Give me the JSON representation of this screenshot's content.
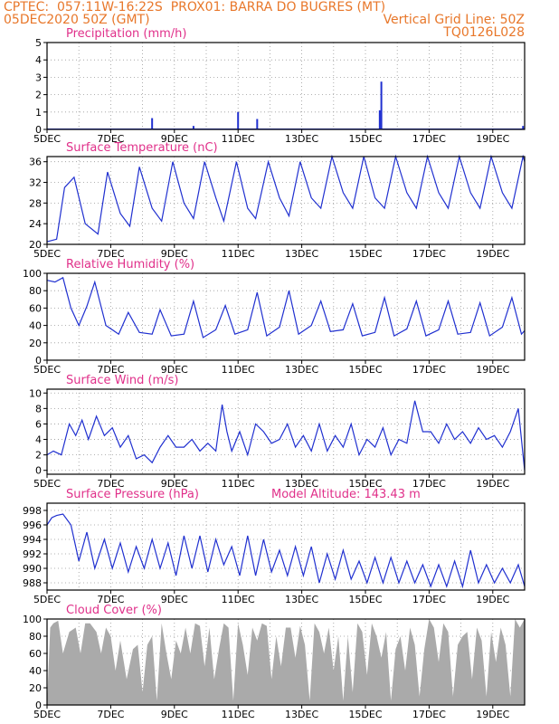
{
  "header": {
    "line1": "CPTEC:  057:11W-16:22S  PROX01: BARRA DO BUGRES (MT)",
    "line2_left": "05DEC2020 50Z (GMT)",
    "line2_right": "Vertical Grid Line: 50Z",
    "line3_right": "TQ0126L028"
  },
  "colors": {
    "header": "#e8772a",
    "title": "#e0308a",
    "line": "#2030d0",
    "cloud": "#aaaaaa"
  },
  "chart_data": [
    {
      "type": "bar",
      "title": "Precipitation (mm/h)",
      "x_start": 0,
      "x_end": 15,
      "ylim": [
        0,
        5
      ],
      "yticks": [
        0,
        1,
        2,
        3,
        4,
        5
      ],
      "xticklabels": [
        "5DEC",
        "7DEC",
        "9DEC",
        "11DEC",
        "13DEC",
        "15DEC",
        "17DEC",
        "19DEC"
      ],
      "x": [
        3.3,
        4.6,
        6.0,
        6.6,
        10.45,
        10.5,
        14.95
      ],
      "values": [
        0.65,
        0.2,
        1.0,
        0.6,
        1.1,
        2.75,
        0.2
      ]
    },
    {
      "type": "line",
      "title": "Surface Temperature (nC)",
      "x_start": 0,
      "x_end": 15,
      "ylim": [
        20,
        37
      ],
      "yticks": [
        20,
        24,
        28,
        32,
        36
      ],
      "xticklabels": [
        "5DEC",
        "7DEC",
        "9DEC",
        "11DEC",
        "13DEC",
        "15DEC",
        "17DEC",
        "19DEC"
      ],
      "x": [
        0,
        0.3,
        0.55,
        0.85,
        1.2,
        1.6,
        1.9,
        2.3,
        2.6,
        2.9,
        3.3,
        3.6,
        3.95,
        4.3,
        4.6,
        4.95,
        5.3,
        5.55,
        5.95,
        6.3,
        6.55,
        6.95,
        7.3,
        7.6,
        7.95,
        8.3,
        8.6,
        8.95,
        9.3,
        9.6,
        9.95,
        10.3,
        10.6,
        10.95,
        11.3,
        11.6,
        11.95,
        12.3,
        12.6,
        12.95,
        13.3,
        13.6,
        13.95,
        14.3,
        14.6,
        14.95,
        15
      ],
      "values": [
        20.5,
        21,
        31,
        33,
        24,
        22,
        34,
        26,
        23.5,
        35,
        27,
        24.5,
        36,
        28,
        25,
        36,
        29,
        24.5,
        36,
        27,
        25,
        36,
        29,
        25.5,
        36,
        29,
        27,
        37,
        30,
        27,
        37,
        29,
        27,
        37,
        30,
        27,
        37,
        30,
        27,
        37,
        30,
        27,
        37,
        30,
        27,
        37,
        36
      ]
    },
    {
      "type": "line",
      "title": "Relative Humidity (%)",
      "x_start": 0,
      "x_end": 15,
      "ylim": [
        0,
        100
      ],
      "yticks": [
        0,
        20,
        40,
        60,
        80,
        100
      ],
      "xticklabels": [
        "5DEC",
        "7DEC",
        "9DEC",
        "11DEC",
        "13DEC",
        "15DEC",
        "17DEC",
        "19DEC"
      ],
      "x": [
        0,
        0.25,
        0.5,
        0.75,
        1.0,
        1.25,
        1.5,
        1.85,
        2.25,
        2.55,
        2.9,
        3.3,
        3.55,
        3.9,
        4.3,
        4.6,
        4.9,
        5.3,
        5.6,
        5.9,
        6.3,
        6.6,
        6.9,
        7.3,
        7.6,
        7.9,
        8.3,
        8.6,
        8.9,
        9.3,
        9.6,
        9.9,
        10.3,
        10.6,
        10.9,
        11.3,
        11.6,
        11.9,
        12.3,
        12.6,
        12.9,
        13.3,
        13.6,
        13.9,
        14.3,
        14.6,
        14.9,
        15
      ],
      "values": [
        92,
        90,
        95,
        60,
        40,
        62,
        90,
        40,
        30,
        55,
        32,
        30,
        58,
        28,
        30,
        68,
        26,
        35,
        63,
        30,
        35,
        78,
        28,
        38,
        80,
        30,
        40,
        68,
        33,
        35,
        65,
        28,
        32,
        72,
        28,
        36,
        68,
        28,
        35,
        68,
        30,
        32,
        66,
        28,
        38,
        72,
        30,
        34
      ]
    },
    {
      "type": "line",
      "title": "Surface Wind (m/s)",
      "x_start": 0,
      "x_end": 15,
      "ylim": [
        -0.5,
        10.5
      ],
      "yticks": [
        0,
        2,
        4,
        6,
        8,
        10
      ],
      "xticklabels": [
        "5DEC",
        "7DEC",
        "9DEC",
        "11DEC",
        "13DEC",
        "15DEC",
        "17DEC",
        "19DEC"
      ],
      "x": [
        0,
        0.2,
        0.45,
        0.7,
        0.9,
        1.1,
        1.3,
        1.55,
        1.8,
        2.05,
        2.3,
        2.55,
        2.8,
        3.05,
        3.3,
        3.55,
        3.8,
        4.05,
        4.3,
        4.55,
        4.8,
        5.05,
        5.3,
        5.5,
        5.65,
        5.8,
        6.05,
        6.3,
        6.55,
        6.8,
        7.05,
        7.3,
        7.55,
        7.8,
        8.05,
        8.3,
        8.55,
        8.8,
        9.05,
        9.3,
        9.55,
        9.8,
        10.05,
        10.3,
        10.55,
        10.8,
        11.05,
        11.3,
        11.55,
        11.8,
        12.05,
        12.3,
        12.55,
        12.8,
        13.05,
        13.3,
        13.55,
        13.8,
        14.05,
        14.3,
        14.55,
        14.8,
        15
      ],
      "values": [
        2,
        2.5,
        2,
        6,
        4.5,
        6.5,
        4,
        7,
        4.5,
        5.5,
        3,
        4.5,
        1.5,
        2,
        1,
        3,
        4.5,
        3,
        3,
        4,
        2.5,
        3.5,
        2.5,
        8.5,
        5,
        2.5,
        5,
        2,
        6,
        5,
        3.5,
        4,
        6,
        3,
        4.5,
        2.5,
        6,
        2.5,
        4.5,
        3,
        6,
        2,
        4,
        3,
        5.5,
        2,
        4,
        3.5,
        9,
        5,
        5,
        3.5,
        6,
        4,
        5,
        3.5,
        5.5,
        4,
        4.5,
        3,
        5,
        8,
        0
      ]
    },
    {
      "type": "line",
      "title": "Surface Pressure (hPa)",
      "annotation": "Model Altitude: 143.43 m",
      "x_start": 0,
      "x_end": 15,
      "ylim": [
        987,
        999
      ],
      "yticks": [
        988,
        990,
        992,
        994,
        996,
        998
      ],
      "xticklabels": [
        "5DEC",
        "7DEC",
        "9DEC",
        "11DEC",
        "13DEC",
        "15DEC",
        "17DEC",
        "19DEC"
      ],
      "x": [
        0,
        0.15,
        0.3,
        0.5,
        0.75,
        1.0,
        1.25,
        1.5,
        1.8,
        2.05,
        2.3,
        2.55,
        2.8,
        3.05,
        3.3,
        3.55,
        3.8,
        4.05,
        4.3,
        4.55,
        4.8,
        5.05,
        5.3,
        5.55,
        5.8,
        6.05,
        6.3,
        6.55,
        6.8,
        7.05,
        7.3,
        7.55,
        7.8,
        8.05,
        8.3,
        8.55,
        8.8,
        9.05,
        9.3,
        9.55,
        9.8,
        10.05,
        10.3,
        10.55,
        10.8,
        11.05,
        11.3,
        11.55,
        11.8,
        12.05,
        12.3,
        12.55,
        12.8,
        13.05,
        13.3,
        13.55,
        13.8,
        14.05,
        14.3,
        14.55,
        14.8,
        15
      ],
      "values": [
        996,
        997,
        997.3,
        997.5,
        996,
        991,
        995,
        990,
        994,
        990,
        993.5,
        989.5,
        993,
        990,
        994,
        990,
        993.5,
        989,
        994.5,
        990,
        994.5,
        989.5,
        994,
        990.5,
        993,
        989,
        994.5,
        989,
        994,
        989.5,
        992.5,
        989,
        993,
        989,
        993,
        988,
        992,
        988.5,
        992.5,
        988.5,
        991,
        988,
        991.5,
        988,
        991.5,
        988,
        991,
        988,
        990.5,
        987.5,
        990.5,
        987.5,
        991,
        987.5,
        992.5,
        988,
        990.5,
        988,
        990,
        988,
        990.5,
        987.5
      ]
    },
    {
      "type": "area",
      "title": "Cloud Cover (%)",
      "x_start": 0,
      "x_end": 15,
      "ylim": [
        0,
        100
      ],
      "yticks": [
        0,
        20,
        40,
        60,
        80,
        100
      ],
      "xticklabels": [
        "5DEC",
        "7DEC",
        "9DEC",
        "11DEC",
        "13DEC",
        "15DEC",
        "17DEC",
        "19DEC"
      ],
      "x": [
        0,
        0.1,
        0.2,
        0.35,
        0.5,
        0.7,
        0.9,
        1.05,
        1.2,
        1.35,
        1.55,
        1.7,
        1.85,
        2.0,
        2.15,
        2.3,
        2.5,
        2.7,
        2.85,
        3.0,
        3.15,
        3.3,
        3.45,
        3.6,
        3.75,
        3.9,
        4.05,
        4.2,
        4.35,
        4.5,
        4.65,
        4.8,
        4.95,
        5.1,
        5.25,
        5.4,
        5.55,
        5.7,
        5.85,
        6.0,
        6.15,
        6.3,
        6.45,
        6.6,
        6.75,
        6.9,
        7.05,
        7.2,
        7.35,
        7.5,
        7.65,
        7.8,
        7.95,
        8.1,
        8.25,
        8.4,
        8.55,
        8.7,
        8.85,
        9.0,
        9.15,
        9.3,
        9.45,
        9.6,
        9.75,
        9.9,
        10.05,
        10.2,
        10.35,
        10.5,
        10.65,
        10.8,
        10.95,
        11.1,
        11.25,
        11.4,
        11.55,
        11.7,
        11.85,
        12.0,
        12.15,
        12.3,
        12.45,
        12.6,
        12.75,
        12.9,
        13.05,
        13.2,
        13.35,
        13.5,
        13.65,
        13.8,
        13.95,
        14.1,
        14.25,
        14.4,
        14.55,
        14.7,
        14.85,
        15
      ],
      "values": [
        0,
        90,
        95,
        98,
        60,
        85,
        90,
        60,
        95,
        95,
        85,
        60,
        90,
        80,
        40,
        75,
        30,
        65,
        70,
        15,
        70,
        80,
        5,
        95,
        60,
        30,
        75,
        60,
        90,
        60,
        95,
        92,
        45,
        90,
        30,
        65,
        95,
        90,
        5,
        95,
        70,
        35,
        90,
        75,
        95,
        92,
        30,
        80,
        45,
        90,
        90,
        55,
        92,
        70,
        5,
        95,
        85,
        60,
        90,
        40,
        80,
        5,
        80,
        15,
        95,
        85,
        35,
        95,
        80,
        55,
        85,
        5,
        65,
        80,
        40,
        90,
        70,
        10,
        65,
        100,
        90,
        50,
        95,
        85,
        10,
        70,
        80,
        85,
        30,
        90,
        75,
        10,
        85,
        50,
        90,
        70,
        10,
        100,
        90,
        100
      ]
    }
  ]
}
